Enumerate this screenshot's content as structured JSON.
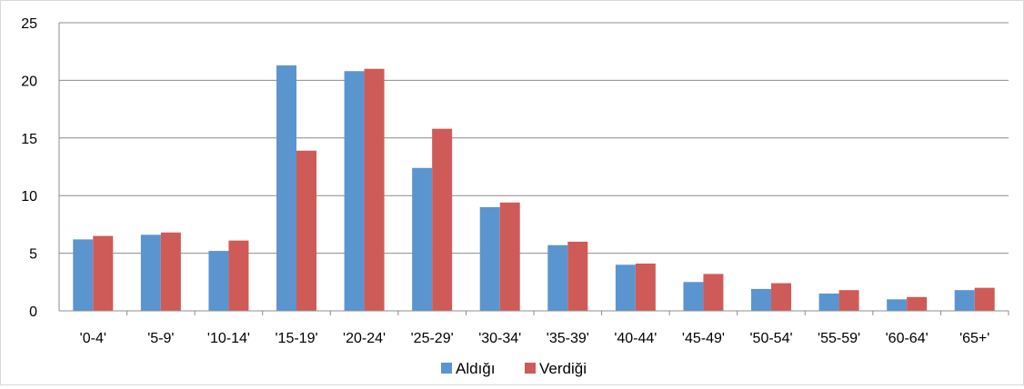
{
  "chart_data": {
    "type": "bar",
    "categories": [
      "'0-4'",
      "'5-9'",
      "'10-14'",
      "'15-19'",
      "'20-24'",
      "'25-29'",
      "'30-34'",
      "'35-39'",
      "'40-44'",
      "'45-49'",
      "'50-54'",
      "'55-59'",
      "'60-64'",
      "'65+'"
    ],
    "series": [
      {
        "name": "Aldığı",
        "color": "#5b95cf",
        "values": [
          6.2,
          6.6,
          5.2,
          21.3,
          20.8,
          12.4,
          9.0,
          5.7,
          4.0,
          2.5,
          1.9,
          1.5,
          1.0,
          1.8
        ]
      },
      {
        "name": "Verdiği",
        "color": "#cf5b58",
        "values": [
          6.5,
          6.8,
          6.1,
          13.9,
          21.0,
          15.8,
          9.4,
          6.0,
          4.1,
          3.2,
          2.4,
          1.8,
          1.2,
          2.0
        ]
      }
    ],
    "y_ticks": [
      "0",
      "5",
      "10",
      "15",
      "20",
      "25"
    ],
    "ylim": [
      0,
      25
    ],
    "grid": true,
    "legend_position": "bottom",
    "title": "",
    "xlabel": "",
    "ylabel": ""
  }
}
